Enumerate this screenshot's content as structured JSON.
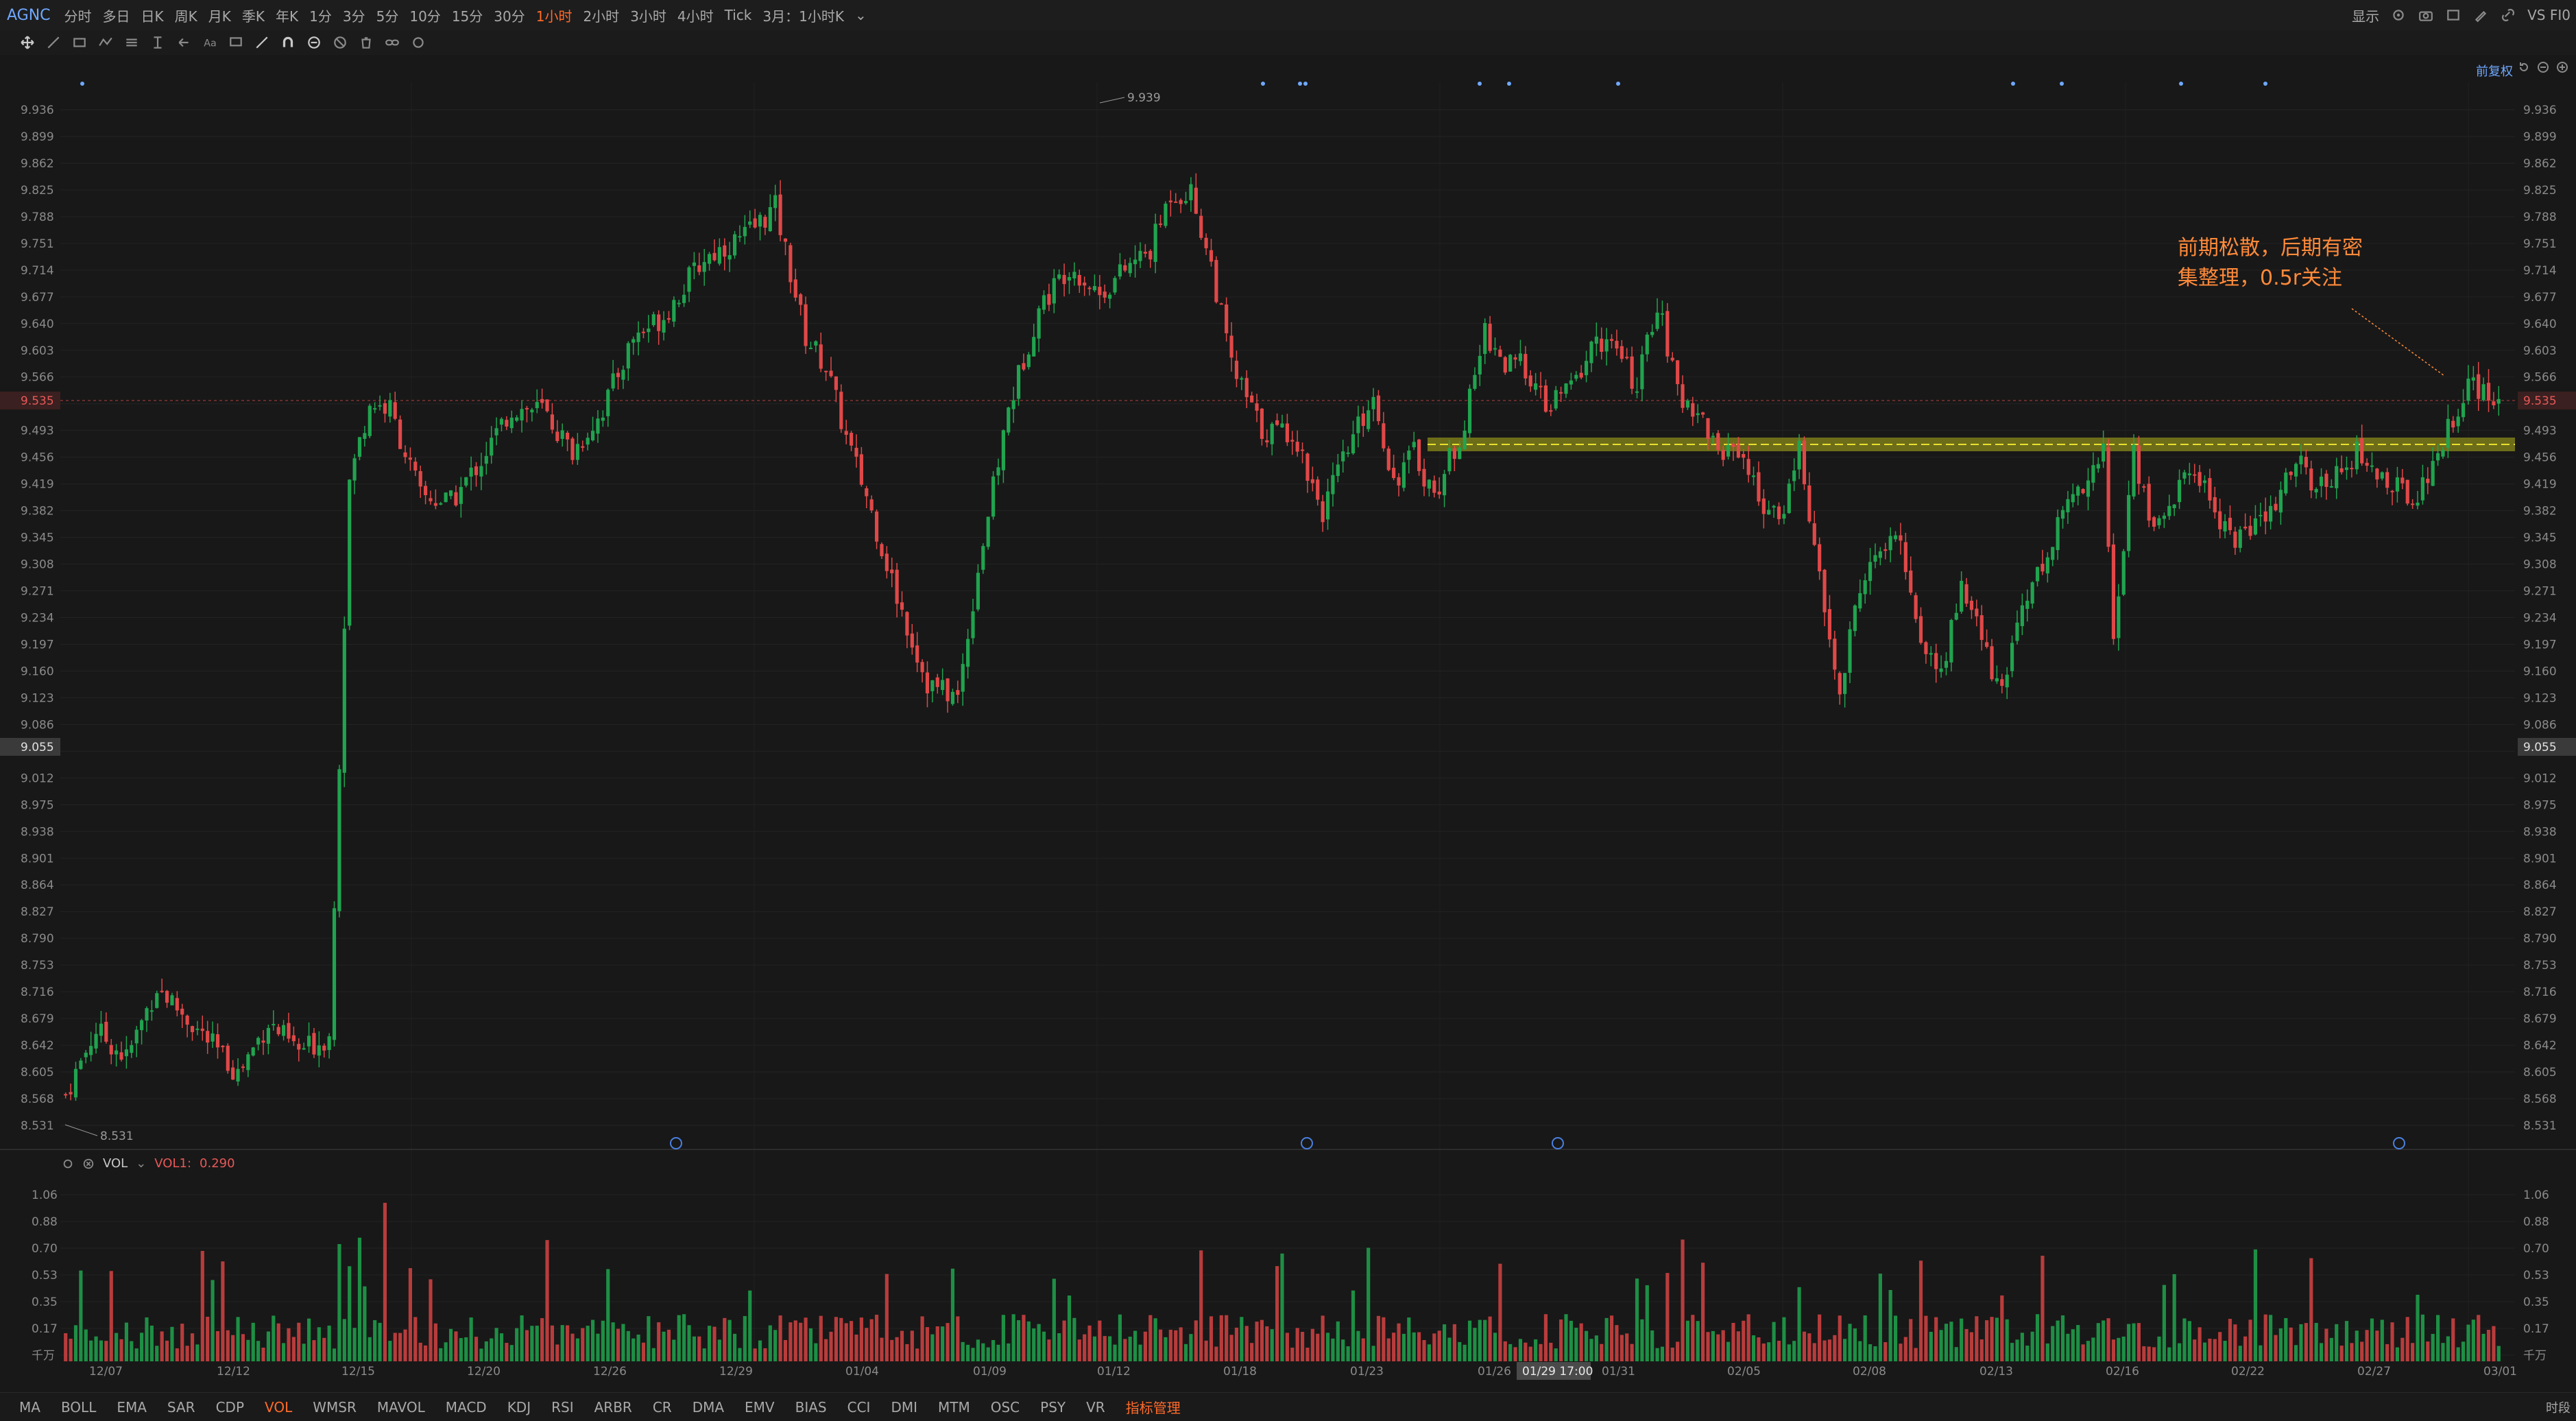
{
  "toolbar": {
    "symbol": "AGNC",
    "timeframes": [
      "分时",
      "多日",
      "日K",
      "周K",
      "月K",
      "季K",
      "年K",
      "1分",
      "3分",
      "5分",
      "10分",
      "15分",
      "30分",
      "1小时",
      "2小时",
      "3小时",
      "4小时",
      "Tick",
      "3月：1小时K"
    ],
    "active_timeframe": "1小时",
    "display_label": "显示",
    "vs_label": "VS FI0"
  },
  "chart": {
    "fuquan_label": "前复权",
    "price_labels": [
      "9.936",
      "9.899",
      "9.862",
      "9.825",
      "9.788",
      "9.751",
      "9.714",
      "9.677",
      "9.640",
      "9.603",
      "9.566",
      "9.530",
      "9.493",
      "9.456",
      "9.419",
      "9.382",
      "9.345",
      "9.308",
      "9.271",
      "9.234",
      "9.197",
      "9.160",
      "9.123",
      "9.086",
      "9.049",
      "9.012",
      "8.975",
      "8.938",
      "8.901",
      "8.864",
      "8.827",
      "8.790",
      "8.753",
      "8.716",
      "8.679",
      "8.642",
      "8.605",
      "8.568",
      "8.531"
    ],
    "current_price_tag": "9.535",
    "crosshair_price_tag": "9.055",
    "high_label": "9.939",
    "low_label": "8.531",
    "date_labels": [
      "12/07",
      "12/12",
      "12/15",
      "12/20",
      "12/26",
      "12/29",
      "01/04",
      "01/09",
      "01/12",
      "01/18",
      "01/23",
      "01/26",
      "01/31",
      "02/05",
      "02/08",
      "02/13",
      "02/16",
      "02/22",
      "02/27",
      "03/01"
    ],
    "crosshair_time": "01/29 17:00",
    "annotation_lines": [
      "前期松散，后期有密",
      "集整理，0.5r关注"
    ],
    "colors": {
      "up": "#21a34f",
      "down": "#e04848",
      "zone": "#8a8a1a",
      "accent": "#ff6a2a",
      "link": "#6fa8ff"
    }
  },
  "volume": {
    "indicator_name": "VOL",
    "vol_label": "VOL1:",
    "vol_value": "0.290",
    "axis_labels": [
      "1.06",
      "0.88",
      "0.70",
      "0.53",
      "0.35",
      "0.17",
      "千万"
    ]
  },
  "bottom_indicators": [
    "MA",
    "BOLL",
    "EMA",
    "SAR",
    "CDP",
    "VOL",
    "WMSR",
    "MAVOL",
    "MACD",
    "KDJ",
    "RSI",
    "ARBR",
    "CR",
    "DMA",
    "EMV",
    "BIAS",
    "CCI",
    "DMI",
    "MTM",
    "OSC",
    "PSY",
    "VR",
    "指标管理"
  ],
  "active_indicator": "VOL",
  "indicator_manage": "指标管理",
  "time_segment_label": "时段",
  "chart_data": {
    "type": "candlestick",
    "ylim": [
      8.531,
      9.939
    ],
    "anchors": [
      [
        0,
        8.57
      ],
      [
        6,
        8.66
      ],
      [
        12,
        8.62
      ],
      [
        18,
        8.72
      ],
      [
        26,
        8.66
      ],
      [
        34,
        8.6
      ],
      [
        40,
        8.67
      ],
      [
        46,
        8.63
      ],
      [
        52,
        8.65
      ],
      [
        56,
        9.42
      ],
      [
        60,
        9.53
      ],
      [
        64,
        9.52
      ],
      [
        70,
        9.4
      ],
      [
        76,
        9.39
      ],
      [
        82,
        9.45
      ],
      [
        88,
        9.52
      ],
      [
        94,
        9.52
      ],
      [
        100,
        9.46
      ],
      [
        106,
        9.52
      ],
      [
        112,
        9.62
      ],
      [
        118,
        9.65
      ],
      [
        126,
        9.73
      ],
      [
        134,
        9.76
      ],
      [
        140,
        9.8
      ],
      [
        146,
        9.62
      ],
      [
        150,
        9.58
      ],
      [
        154,
        9.48
      ],
      [
        158,
        9.4
      ],
      [
        164,
        9.26
      ],
      [
        170,
        9.14
      ],
      [
        176,
        9.12
      ],
      [
        180,
        9.3
      ],
      [
        186,
        9.52
      ],
      [
        192,
        9.66
      ],
      [
        198,
        9.72
      ],
      [
        204,
        9.68
      ],
      [
        210,
        9.72
      ],
      [
        214,
        9.74
      ],
      [
        218,
        9.82
      ],
      [
        222,
        9.82
      ],
      [
        226,
        9.72
      ],
      [
        230,
        9.58
      ],
      [
        236,
        9.49
      ],
      [
        242,
        9.49
      ],
      [
        248,
        9.38
      ],
      [
        254,
        9.48
      ],
      [
        258,
        9.54
      ],
      [
        262,
        9.42
      ],
      [
        266,
        9.46
      ],
      [
        270,
        9.4
      ],
      [
        276,
        9.5
      ],
      [
        280,
        9.63
      ],
      [
        284,
        9.58
      ],
      [
        288,
        9.58
      ],
      [
        292,
        9.52
      ],
      [
        298,
        9.56
      ],
      [
        302,
        9.62
      ],
      [
        306,
        9.6
      ],
      [
        310,
        9.55
      ],
      [
        314,
        9.67
      ],
      [
        318,
        9.54
      ],
      [
        322,
        9.52
      ],
      [
        326,
        9.46
      ],
      [
        330,
        9.47
      ],
      [
        334,
        9.4
      ],
      [
        338,
        9.36
      ],
      [
        342,
        9.47
      ],
      [
        346,
        9.28
      ],
      [
        350,
        9.12
      ],
      [
        354,
        9.28
      ],
      [
        358,
        9.32
      ],
      [
        362,
        9.34
      ],
      [
        366,
        9.2
      ],
      [
        370,
        9.15
      ],
      [
        374,
        9.28
      ],
      [
        378,
        9.2
      ],
      [
        382,
        9.12
      ],
      [
        386,
        9.26
      ],
      [
        390,
        9.3
      ],
      [
        394,
        9.38
      ],
      [
        398,
        9.42
      ],
      [
        402,
        9.46
      ],
      [
        404,
        9.2
      ],
      [
        408,
        9.46
      ],
      [
        412,
        9.35
      ],
      [
        416,
        9.4
      ],
      [
        420,
        9.44
      ],
      [
        424,
        9.38
      ],
      [
        428,
        9.34
      ],
      [
        432,
        9.36
      ],
      [
        436,
        9.38
      ],
      [
        440,
        9.46
      ],
      [
        444,
        9.4
      ],
      [
        448,
        9.44
      ],
      [
        452,
        9.46
      ],
      [
        456,
        9.43
      ],
      [
        460,
        9.41
      ],
      [
        464,
        9.4
      ],
      [
        468,
        9.46
      ],
      [
        474,
        9.56
      ],
      [
        478,
        9.53
      ],
      [
        480,
        9.54
      ]
    ]
  }
}
